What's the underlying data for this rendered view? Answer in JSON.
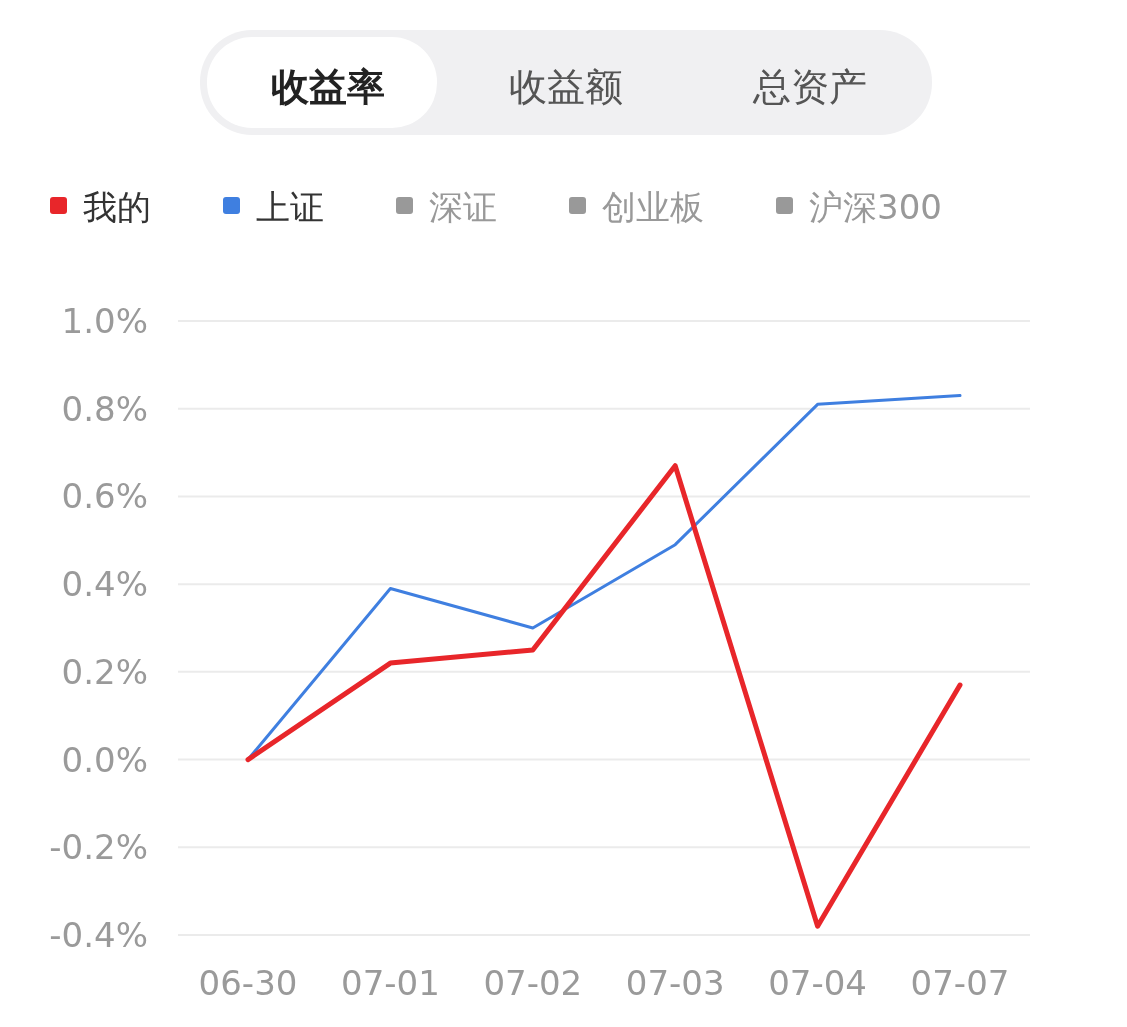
{
  "chart_data": {
    "type": "line",
    "categories": [
      "06-30",
      "07-01",
      "07-02",
      "07-03",
      "07-04",
      "07-07"
    ],
    "series": [
      {
        "name": "我的",
        "color": "#e8262a",
        "values": [
          0,
          0.22,
          0.25,
          0.67,
          -0.38,
          0.17
        ]
      },
      {
        "name": "上证",
        "color": "#3f7fe0",
        "values": [
          0,
          0.39,
          0.3,
          0.49,
          0.81,
          0.83
        ]
      },
      {
        "name": "深证",
        "color": "#999999",
        "values": [
          null,
          null,
          null,
          null,
          null,
          null
        ]
      },
      {
        "name": "创业板",
        "color": "#999999",
        "values": [
          null,
          null,
          null,
          null,
          null,
          null
        ]
      },
      {
        "name": "沪深300",
        "color": "#999999",
        "values": [
          null,
          null,
          null,
          null,
          null,
          null
        ]
      }
    ],
    "ylim": [
      -0.4,
      1.0
    ],
    "yticks": [
      {
        "value": -0.4,
        "label": "-0.4%"
      },
      {
        "value": -0.2,
        "label": "-0.2%"
      },
      {
        "value": 0,
        "label": "0.0%"
      },
      {
        "value": 0.2,
        "label": "0.2%"
      },
      {
        "value": 0.4,
        "label": "0.4%"
      },
      {
        "value": 0.6,
        "label": "0.6%"
      },
      {
        "value": 0.8,
        "label": "0.8%"
      },
      {
        "value": 1.0,
        "label": "1.0%"
      }
    ],
    "grid": "y",
    "legend": "top",
    "marker": "none",
    "line_style": "solid",
    "annotations": [
      "收益率",
      "收益额",
      "总资产"
    ]
  }
}
